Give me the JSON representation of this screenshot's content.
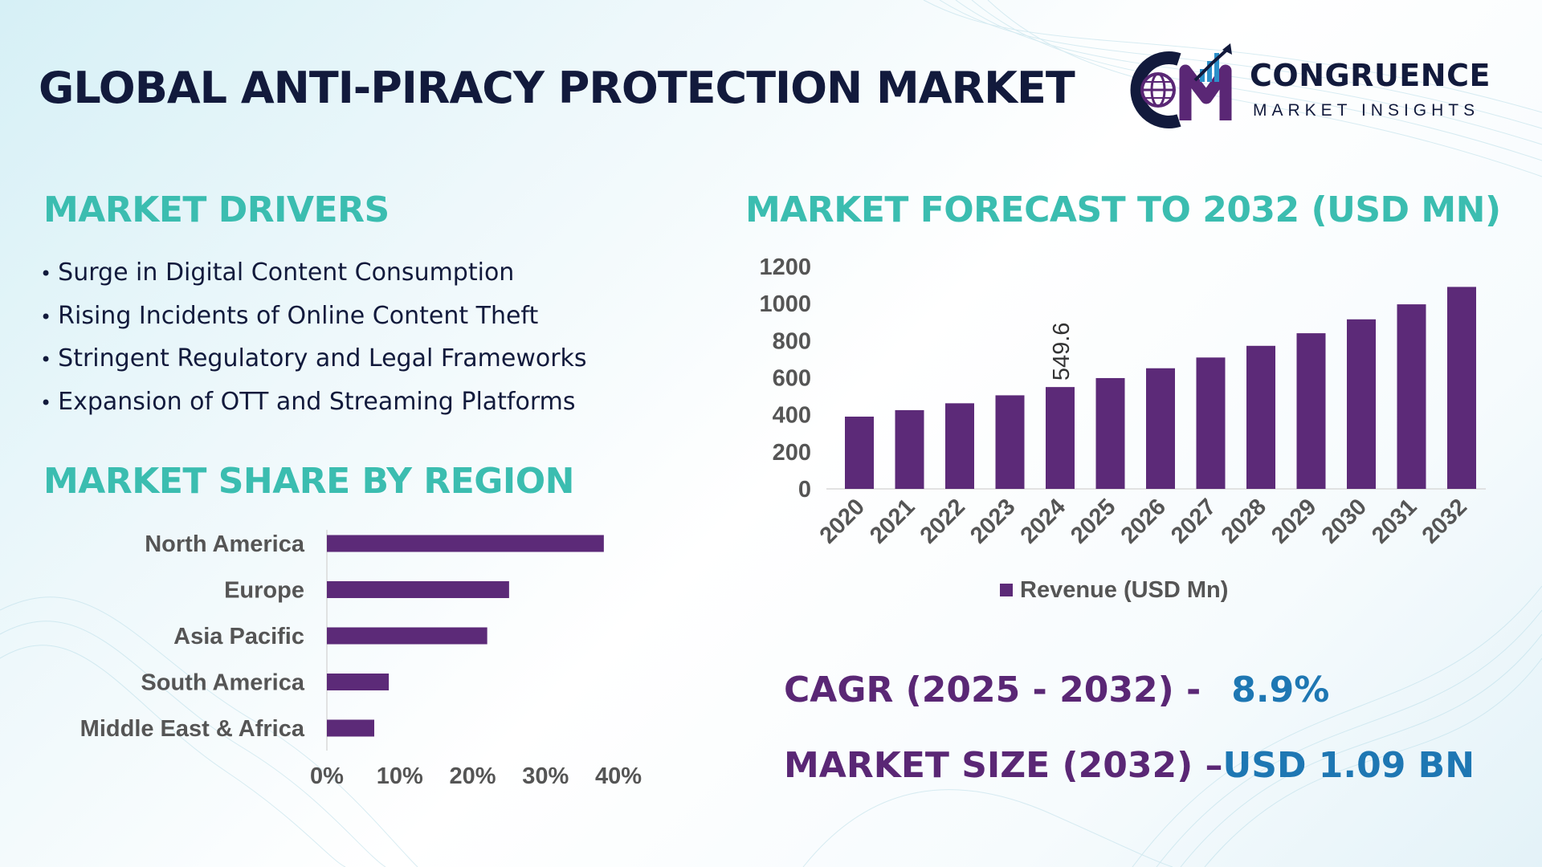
{
  "title": "GLOBAL ANTI-PIRACY PROTECTION MARKET",
  "logo": {
    "name": "CONGRUENCE",
    "tagline": "MARKET INSIGHTS",
    "icon": "globe-bars-cm-logo-icon",
    "colors": {
      "navy": "#121a3c",
      "purple": "#5a2775"
    }
  },
  "drivers": {
    "title": "MARKET DRIVERS",
    "bullet": "•",
    "items": [
      "Surge in Digital Content Consumption",
      "Rising Incidents of Online Content Theft",
      "Stringent Regulatory and Legal Frameworks",
      "Expansion of OTT and Streaming Platforms"
    ]
  },
  "share": {
    "title": "MARKET SHARE BY REGION"
  },
  "forecast": {
    "title": "MARKET FORECAST TO 2032 (USD MN)"
  },
  "stats": {
    "cagr_label": "CAGR (2025 - 2032) -",
    "cagr_value": "8.9%",
    "size_label": "MARKET SIZE (2032) –",
    "size_value": "USD 1.09 BN"
  },
  "colors": {
    "accent_teal": "#3bbdb0",
    "bar_purple": "#5c2a78",
    "stat_label_purple": "#5a2775",
    "stat_value_blue": "#1e77b3",
    "text_navy": "#121a3c",
    "axis_text": "#555555"
  },
  "chart_data": [
    {
      "type": "bar",
      "orientation": "horizontal",
      "categories": [
        "North America",
        "Europe",
        "Asia Pacific",
        "South America",
        "Middle East & Africa"
      ],
      "values": [
        38,
        25,
        22,
        8.5,
        6.5
      ],
      "xlim": [
        0,
        40
      ],
      "xticks": [
        "0%",
        "10%",
        "20%",
        "30%",
        "40%"
      ],
      "xtick_values": [
        0,
        10,
        20,
        30,
        40
      ],
      "grid": false,
      "legend": "none"
    },
    {
      "type": "bar",
      "orientation": "vertical",
      "categories": [
        "2020",
        "2021",
        "2022",
        "2023",
        "2024",
        "2025",
        "2026",
        "2027",
        "2028",
        "2029",
        "2030",
        "2031",
        "2032"
      ],
      "series": [
        {
          "name": "Revenue (USD Mn)",
          "values": [
            390,
            425,
            462,
            505,
            549.6,
            598,
            651,
            709,
            772,
            840,
            915,
            996,
            1090
          ]
        }
      ],
      "data_labels": [
        {
          "category": "2024",
          "text": "549.6"
        }
      ],
      "ylim": [
        0,
        1200
      ],
      "yticks": [
        0,
        200,
        400,
        600,
        800,
        1000,
        1200
      ],
      "grid": false,
      "legend": "bottom-center"
    }
  ]
}
